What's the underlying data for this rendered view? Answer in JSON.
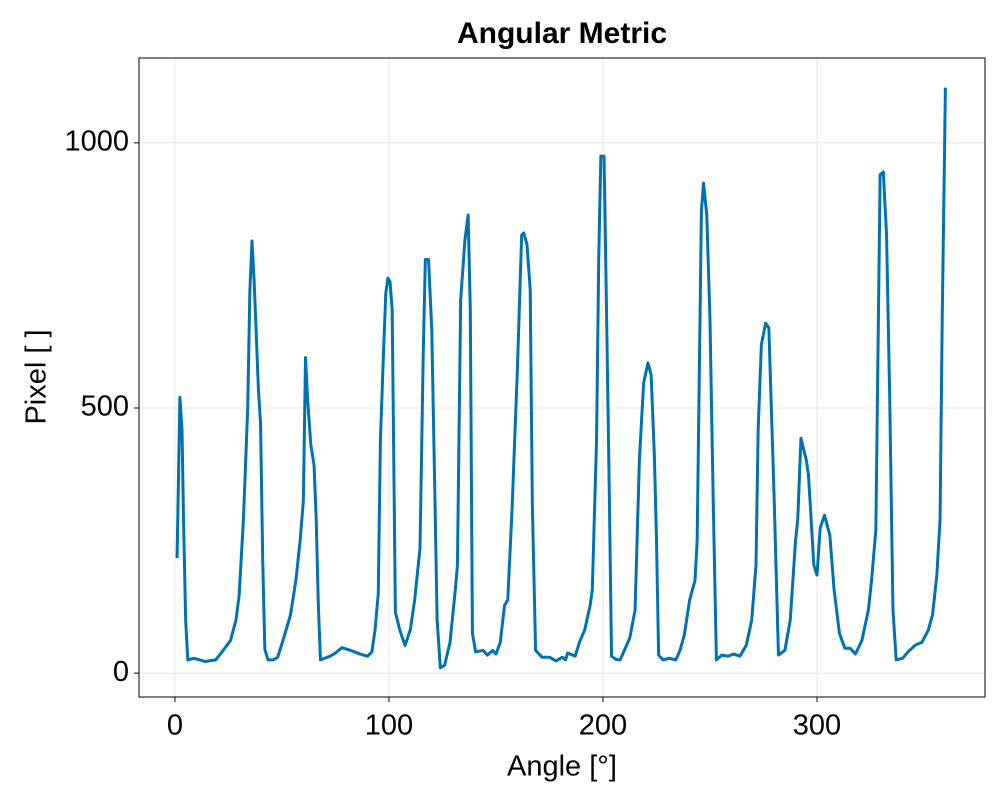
{
  "chart_data": {
    "type": "line",
    "title": "Angular Metric",
    "x_label": "Angle [°]",
    "y_label": "Pixel [ ]",
    "x": [
      1,
      2.3,
      3.3,
      4,
      5,
      6,
      9,
      14,
      19,
      22,
      26,
      28.5,
      30,
      32,
      34,
      35,
      36,
      37,
      39,
      40,
      41,
      42,
      43.5,
      46,
      48,
      50.5,
      54,
      56.5,
      58.5,
      60,
      61,
      62,
      63.5,
      65,
      66,
      67,
      68,
      72.5,
      75,
      78,
      82,
      86.5,
      90,
      92,
      93.5,
      95,
      96,
      97.5,
      98.5,
      99.5,
      100.5,
      101.5,
      103,
      105,
      107.5,
      110,
      112,
      114.5,
      116,
      117,
      118.5,
      120,
      121.5,
      122.5,
      124,
      126,
      128.5,
      131,
      132,
      133.5,
      135.5,
      137,
      138,
      139,
      140.5,
      144,
      146,
      148.5,
      150,
      152,
      154,
      155.5,
      157.5,
      160,
      162,
      163,
      164.5,
      166,
      167,
      168.5,
      171.5,
      175,
      178,
      181,
      182.5,
      183.5,
      187,
      189,
      191.5,
      194,
      195,
      197,
      198,
      199,
      200.5,
      201.5,
      203,
      204,
      206,
      208,
      210,
      212.5,
      215,
      217,
      219,
      221,
      222.5,
      224,
      225,
      226,
      228,
      231,
      234,
      236,
      238,
      240.5,
      243,
      244,
      246,
      247,
      248.5,
      250,
      251.5,
      253,
      255.5,
      258.5,
      261,
      264,
      267,
      269.5,
      271.5,
      272.5,
      274,
      276,
      277.5,
      279,
      280,
      282,
      285,
      287.5,
      290,
      291,
      292.5,
      295,
      296,
      297,
      298.5,
      300,
      301.5,
      303.5,
      306,
      308,
      310.5,
      313,
      315.5,
      318,
      321,
      324,
      325.5,
      327.5,
      329.5,
      331,
      332.5,
      334,
      335.5,
      337,
      340,
      342.5,
      346,
      349,
      352,
      354,
      356,
      357.5,
      358.5,
      360
    ],
    "series": [
      {
        "name": "Pixel",
        "color": "#0072b2",
        "values": [
          217,
          520,
          458,
          290,
          100,
          25,
          28,
          22,
          25,
          40,
          62,
          100,
          147,
          290,
          500,
          720,
          815,
          740,
          535,
          470,
          215,
          45,
          25,
          25,
          30,
          62,
          110,
          175,
          250,
          325,
          595,
          515,
          430,
          392,
          290,
          128,
          25,
          32,
          38,
          48,
          43,
          36,
          32,
          40,
          82,
          150,
          440,
          610,
          715,
          745,
          738,
          685,
          115,
          82,
          52,
          82,
          138,
          235,
          600,
          780,
          780,
          647,
          326,
          100,
          10,
          15,
          57,
          157,
          204,
          704,
          817,
          864,
          685,
          75,
          40,
          43,
          34,
          43,
          36,
          58,
          128,
          138,
          308,
          572,
          826,
          830,
          808,
          723,
          317,
          43,
          30,
          30,
          23,
          30,
          25,
          38,
          32,
          58,
          82,
          128,
          157,
          440,
          780,
          975,
          975,
          723,
          326,
          32,
          26,
          25,
          43,
          66,
          119,
          402,
          547,
          585,
          562,
          411,
          251,
          34,
          25,
          28,
          25,
          43,
          72,
          138,
          175,
          250,
          873,
          924,
          864,
          666,
          326,
          25,
          34,
          32,
          36,
          32,
          53,
          100,
          204,
          458,
          619,
          660,
          651,
          458,
          326,
          34,
          43,
          100,
          251,
          289,
          443,
          402,
          374,
          308,
          204,
          185,
          274,
          298,
          260,
          157,
          75,
          47,
          47,
          36,
          62,
          119,
          175,
          270,
          940,
          945,
          826,
          515,
          119,
          25,
          28,
          40,
          53,
          58,
          81,
          110,
          185,
          289,
          666,
          1104
        ]
      }
    ],
    "xlim": [
      -16.8,
      378.5
    ],
    "ylim": [
      -45,
      1160
    ],
    "xticks": [
      0,
      100,
      200,
      300
    ],
    "yticks": [
      0,
      500,
      1000
    ],
    "grid": true
  }
}
